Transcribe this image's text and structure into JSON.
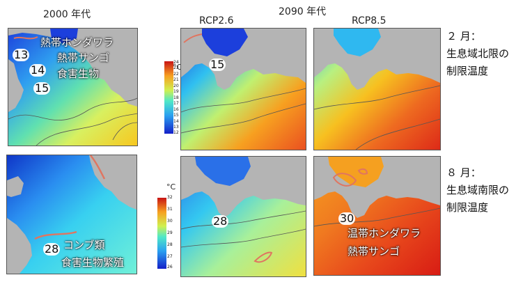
{
  "headers": {
    "y2000": "2000 年代",
    "y2090": "2090 年代",
    "rcp26": "RCP2.6",
    "rcp85": "RCP8.5"
  },
  "side": {
    "feb_title": "２ 月：",
    "feb_line1": "生息域北限の",
    "feb_line2": "制限温度",
    "aug_title": "８ 月：",
    "aug_line1": "生息域南限の",
    "aug_line2": "制限温度"
  },
  "maps": {
    "feb2000": {
      "species1": "熱帯ホンダワラ",
      "species2": "熱帯サンゴ",
      "species3": "食害生物",
      "t13": "13",
      "t14": "14",
      "t15": "15"
    },
    "feb2090_26": {
      "t15": "15"
    },
    "aug2000": {
      "species1": "コンブ類",
      "species2": "食害生物繁殖",
      "t28": "28"
    },
    "aug2090_26": {
      "t28": "28"
    },
    "aug2090_85": {
      "species1": "温帯ホンダワラ",
      "species2": "熱帯サンゴ",
      "t30": "30"
    }
  },
  "colorbars": {
    "feb": {
      "unit": "°C",
      "ticks": [
        "24",
        "23",
        "22",
        "21",
        "20",
        "19",
        "18",
        "17",
        "16",
        "15",
        "14",
        "13",
        "12"
      ]
    },
    "aug": {
      "unit": "°C",
      "ticks": [
        "32",
        "31",
        "30",
        "29",
        "28",
        "27",
        "26"
      ]
    }
  },
  "colors": {
    "land": "#b4b4b4",
    "contour": "#555555",
    "marker_line": "#e07560"
  }
}
